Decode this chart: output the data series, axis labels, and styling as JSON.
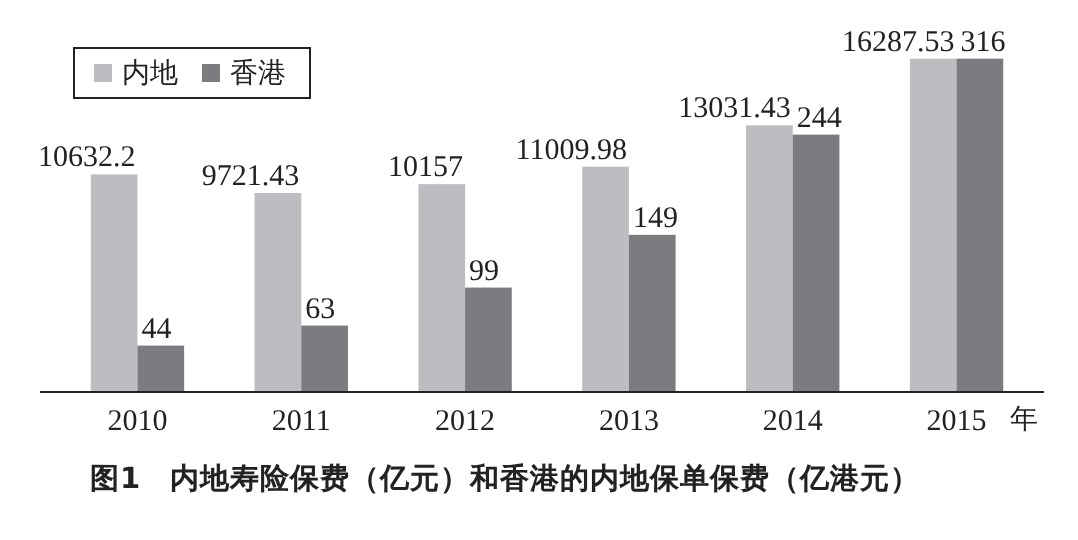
{
  "chart_data": {
    "type": "bar",
    "title": "图1　内地寿险保费（亿元）和香港的内地保单保费（亿港元）",
    "xlabel": "年",
    "categories": [
      "2010",
      "2011",
      "2012",
      "2013",
      "2014",
      "2015"
    ],
    "series": [
      {
        "name": "内地",
        "color": "#bcbdc0",
        "values": [
          10632.2,
          9721.43,
          10157,
          11009.98,
          13031.43,
          16287.53
        ]
      },
      {
        "name": "香港",
        "color": "#7b7c80",
        "axis": "y2",
        "values": [
          44,
          63,
          99,
          149,
          244,
          316
        ]
      }
    ],
    "tick_labels": "x",
    "data_labels": true,
    "legend": "top left",
    "grid": false
  }
}
